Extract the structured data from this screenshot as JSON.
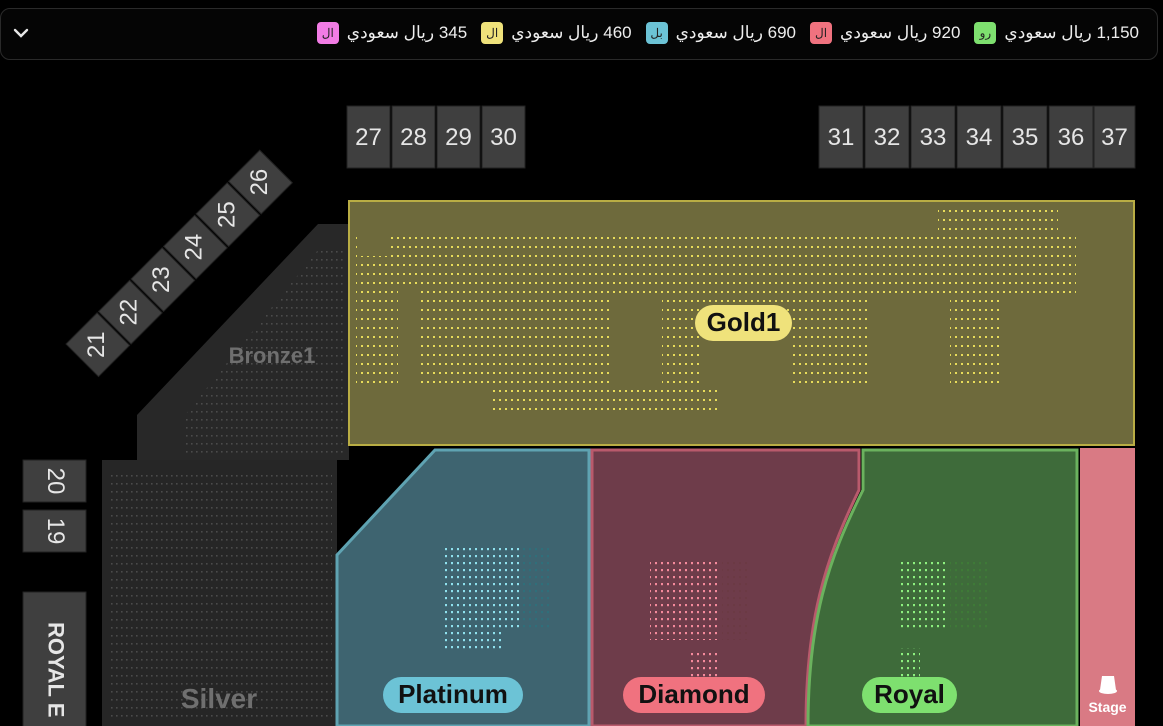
{
  "legend": [
    {
      "code": "رو",
      "price": "1,150 ريال سعودي",
      "color": "#7ee06f"
    },
    {
      "code": "ال",
      "price": "920 ريال سعودي",
      "color": "#f0727f"
    },
    {
      "code": "بل",
      "price": "690 ريال سعودي",
      "color": "#6cc3d6"
    },
    {
      "code": "ال",
      "price": "460 ريال سعودي",
      "color": "#efe27b"
    },
    {
      "code": "ال",
      "price": "345 ريال سعودي",
      "color": "#f27ce5"
    }
  ],
  "top_gates_left": [
    "27",
    "28",
    "29",
    "30"
  ],
  "top_gates_right": [
    "31",
    "32",
    "33",
    "34",
    "35",
    "36",
    "37"
  ],
  "diagonal_gates": [
    "21",
    "22",
    "23",
    "24",
    "25",
    "26"
  ],
  "side_gates": [
    "20",
    "19"
  ],
  "royal_side_label": "ROYAL E",
  "zones": {
    "gold": {
      "label": "Gold1",
      "color": "#efe27b"
    },
    "bronze": {
      "label": "Bronze1"
    },
    "silver": {
      "label": "Silver"
    },
    "platinum": {
      "label": "Platinum",
      "color": "#6cc3d6"
    },
    "diamond": {
      "label": "Diamond",
      "color": "#f0727f"
    },
    "royal": {
      "label": "Royal",
      "color": "#7ee06f"
    },
    "stage": {
      "label": "Stage"
    }
  }
}
